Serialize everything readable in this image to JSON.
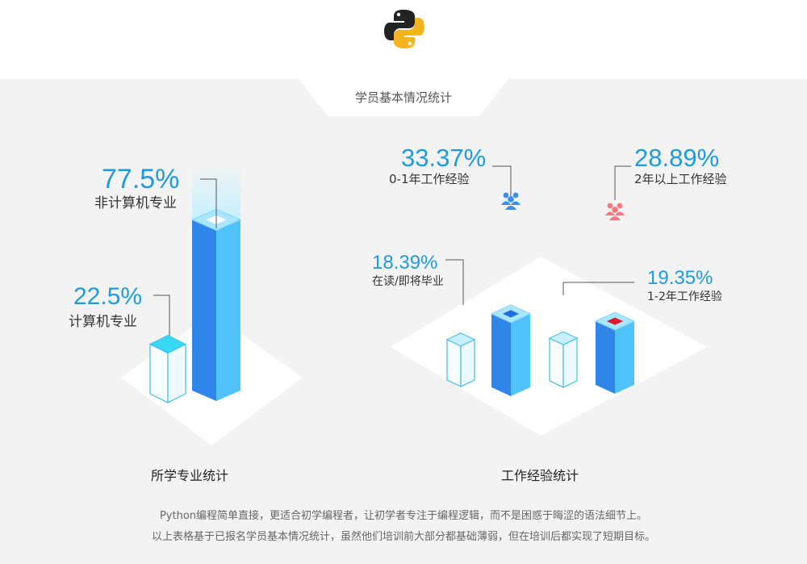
{
  "header": {
    "logo_icon": "python-logo-icon",
    "section_title": "学员基本情况统计"
  },
  "colors": {
    "accent": "#1e9bde",
    "bar_blue": "#2aa0f0",
    "bar_light": "#d9f3ff",
    "cap_red": "#e0192c"
  },
  "chart_data": [
    {
      "type": "bar",
      "title": "所学专业统计",
      "categories": [
        "计算机专业",
        "非计算机专业"
      ],
      "values": [
        22.5,
        77.5
      ],
      "value_labels": [
        "22.5%",
        "77.5%"
      ],
      "unit": "%"
    },
    {
      "type": "bar",
      "title": "工作经验统计",
      "categories": [
        "在读/即将毕业",
        "0-1年工作经验",
        "1-2年工作经验",
        "2年以上工作经验"
      ],
      "values": [
        18.39,
        33.37,
        19.35,
        28.89
      ],
      "value_labels": [
        "18.39%",
        "33.37%",
        "19.35%",
        "28.89%"
      ],
      "unit": "%"
    }
  ],
  "footer": {
    "line1": "Python编程简单直接，更适合初学编程者，让初学者专注于编程逻辑，而不是困惑于晦涩的语法细节上。",
    "line2": "以上表格基于已报名学员基本情况统计，虽然他们培训前大部分都基础薄弱，但在培训后都实现了短期目标。"
  }
}
